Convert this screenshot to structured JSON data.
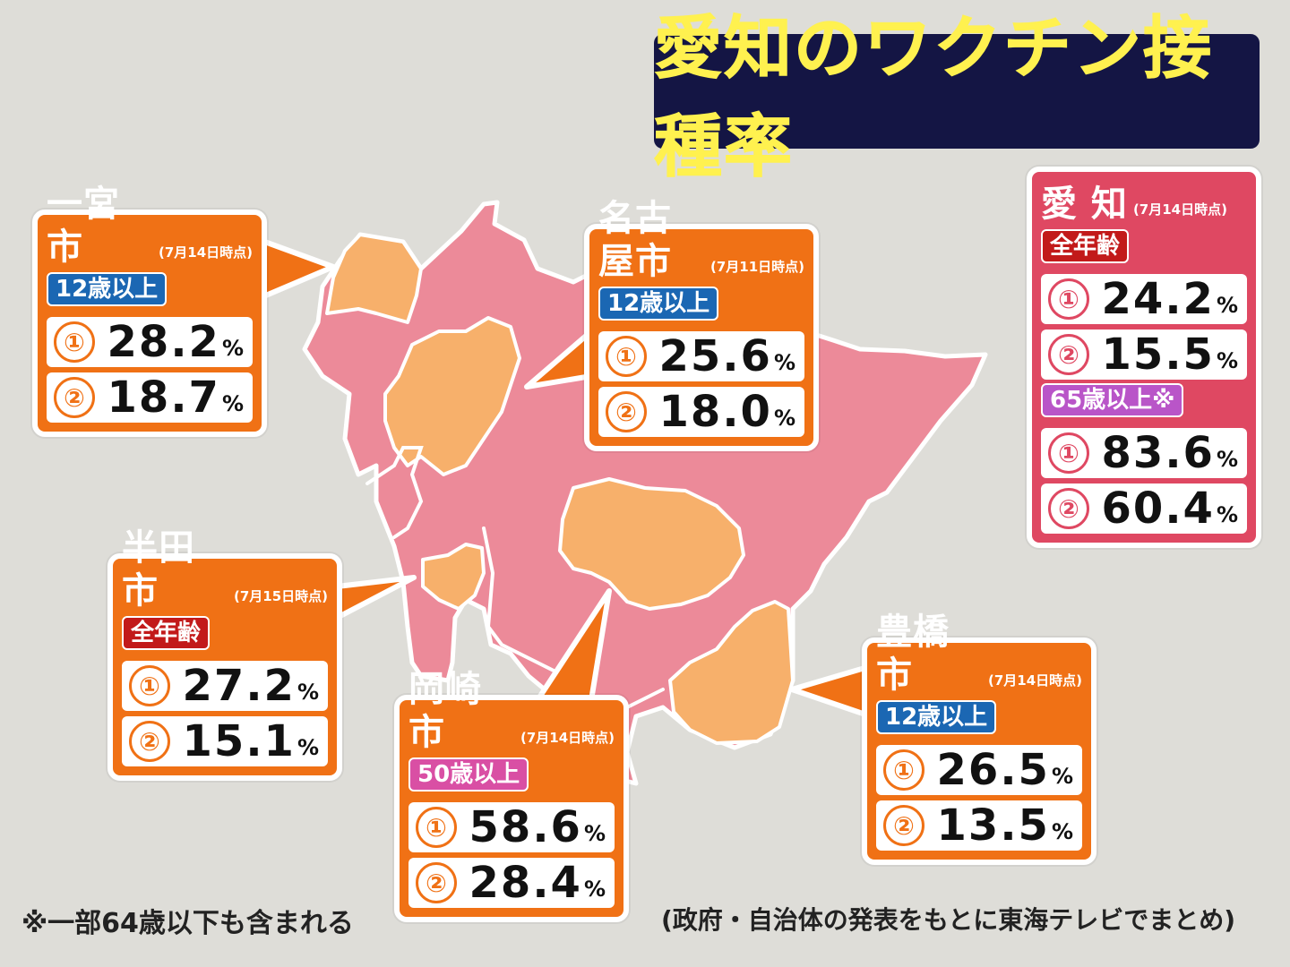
{
  "title": "愛知のワクチン接種率",
  "prefecture": {
    "name": "愛 知",
    "date": "(7月14日時点)",
    "groups": [
      {
        "tag": "全年齢",
        "tag_color": "#c21a1a",
        "first_label": "①",
        "first": "24.2",
        "second_label": "②",
        "second": "15.5",
        "unit": "%"
      },
      {
        "tag": "65歳以上※",
        "tag_color": "#b955c8",
        "first_label": "①",
        "first": "83.6",
        "second_label": "②",
        "second": "60.4",
        "unit": "%"
      }
    ]
  },
  "cities": {
    "ichinomiya": {
      "name": "一宮市",
      "date": "(7月14日時点)",
      "tag": "12歳以上",
      "tag_color": "#1b67b3",
      "first_label": "①",
      "first": "28.2",
      "second_label": "②",
      "second": "18.7",
      "unit": "%"
    },
    "nagoya": {
      "name": "名古屋市",
      "date": "(7月11日時点)",
      "tag": "12歳以上",
      "tag_color": "#1b67b3",
      "first_label": "①",
      "first": "25.6",
      "second_label": "②",
      "second": "18.0",
      "unit": "%"
    },
    "handa": {
      "name": "半田市",
      "date": "(7月15日時点)",
      "tag": "全年齢",
      "tag_color": "#c21a1a",
      "first_label": "①",
      "first": "27.2",
      "second_label": "②",
      "second": "15.1",
      "unit": "%"
    },
    "okazaki": {
      "name": "岡崎市",
      "date": "(7月14日時点)",
      "tag": "50歳以上",
      "tag_color": "#d94fa4",
      "first_label": "①",
      "first": "58.6",
      "second_label": "②",
      "second": "28.4",
      "unit": "%"
    },
    "toyohashi": {
      "name": "豊橋市",
      "date": "(7月14日時点)",
      "tag": "12歳以上",
      "tag_color": "#1b67b3",
      "first_label": "①",
      "first": "26.5",
      "second_label": "②",
      "second": "13.5",
      "unit": "%"
    }
  },
  "footnote_left": "※一部64歳以下も含まれる",
  "footnote_right": "(政府・自治体の発表をもとに東海テレビでまとめ)",
  "colors": {
    "background": "#deddd8",
    "prefecture_fill": "#ec8a99",
    "city_fill": "#f7b06b",
    "card_orange": "#f07115",
    "card_pref": "#df4862",
    "title_bg": "#141544",
    "title_text": "#fff14f"
  }
}
